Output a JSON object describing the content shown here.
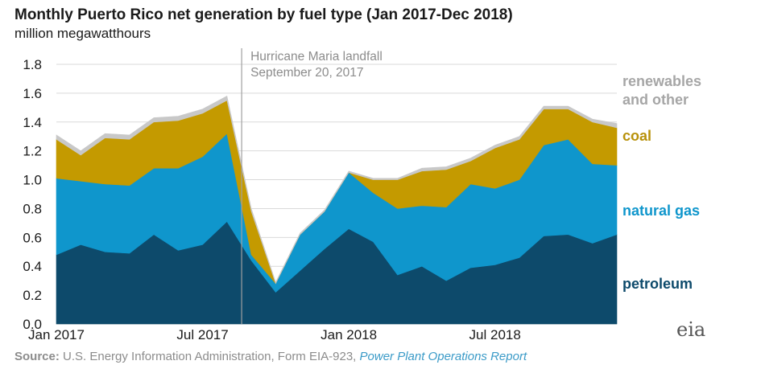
{
  "chart_data": {
    "type": "area",
    "stacked": true,
    "title": "Monthly Puerto Rico net generation by fuel type (Jan 2017-Dec 2018)",
    "ylabel": "million megawatthours",
    "ylim": [
      0,
      1.8
    ],
    "yticks": [
      "0.0",
      "0.2",
      "0.4",
      "0.6",
      "0.8",
      "1.0",
      "1.2",
      "1.4",
      "1.6",
      "1.8"
    ],
    "x_months": [
      "2017-01",
      "2017-02",
      "2017-03",
      "2017-04",
      "2017-05",
      "2017-06",
      "2017-07",
      "2017-08",
      "2017-09",
      "2017-10",
      "2017-11",
      "2017-12",
      "2018-01",
      "2018-02",
      "2018-03",
      "2018-04",
      "2018-05",
      "2018-06",
      "2018-07",
      "2018-08",
      "2018-09",
      "2018-10",
      "2018-11",
      "2018-12"
    ],
    "xtick_labels": [
      {
        "month": "2017-01",
        "label": "Jan 2017"
      },
      {
        "month": "2017-07",
        "label": "Jul 2017"
      },
      {
        "month": "2018-01",
        "label": "Jan 2018"
      },
      {
        "month": "2018-07",
        "label": "Jul 2018"
      }
    ],
    "series": [
      {
        "name": "petroleum",
        "color": "#0d4a6b",
        "values": [
          0.48,
          0.55,
          0.5,
          0.49,
          0.62,
          0.51,
          0.55,
          0.71,
          0.44,
          0.22,
          0.37,
          0.52,
          0.66,
          0.57,
          0.34,
          0.4,
          0.3,
          0.39,
          0.41,
          0.46,
          0.61,
          0.62,
          0.56,
          0.62
        ]
      },
      {
        "name": "natural gas",
        "color": "#0f96cc",
        "values": [
          0.53,
          0.44,
          0.47,
          0.47,
          0.46,
          0.57,
          0.61,
          0.61,
          0.04,
          0.06,
          0.25,
          0.26,
          0.39,
          0.34,
          0.46,
          0.42,
          0.51,
          0.58,
          0.53,
          0.54,
          0.63,
          0.66,
          0.55,
          0.48
        ]
      },
      {
        "name": "coal",
        "color": "#c49a00",
        "values": [
          0.27,
          0.18,
          0.32,
          0.32,
          0.32,
          0.33,
          0.3,
          0.23,
          0.3,
          0.0,
          0.0,
          0.0,
          0.0,
          0.09,
          0.2,
          0.24,
          0.26,
          0.16,
          0.28,
          0.28,
          0.25,
          0.21,
          0.29,
          0.26
        ]
      },
      {
        "name": "renewables and other",
        "color": "#c8c8c8",
        "values": [
          0.03,
          0.03,
          0.03,
          0.03,
          0.03,
          0.03,
          0.03,
          0.03,
          0.02,
          0.01,
          0.01,
          0.01,
          0.01,
          0.01,
          0.01,
          0.02,
          0.02,
          0.02,
          0.02,
          0.02,
          0.02,
          0.02,
          0.02,
          0.03
        ]
      }
    ],
    "annotation": {
      "month": "2017-09",
      "lines": [
        "Hurricane Maria landfall",
        "September 20, 2017"
      ]
    },
    "legend_labels": [
      {
        "series": "renewables and other",
        "lines": [
          "renewables",
          "and other"
        ],
        "color": "#a6a6a6"
      },
      {
        "series": "coal",
        "lines": [
          "coal"
        ],
        "color": "#b8910a"
      },
      {
        "series": "natural gas",
        "lines": [
          "natural gas"
        ],
        "color": "#0f96cc"
      },
      {
        "series": "petroleum",
        "lines": [
          "petroleum"
        ],
        "color": "#0d4a6b"
      }
    ],
    "grid": "horizontal"
  },
  "source": {
    "prefix": "Source:",
    "text": " U.S. Energy Information Administration, Form EIA-923, ",
    "report": "Power Plant Operations Report"
  },
  "logo": "eia"
}
